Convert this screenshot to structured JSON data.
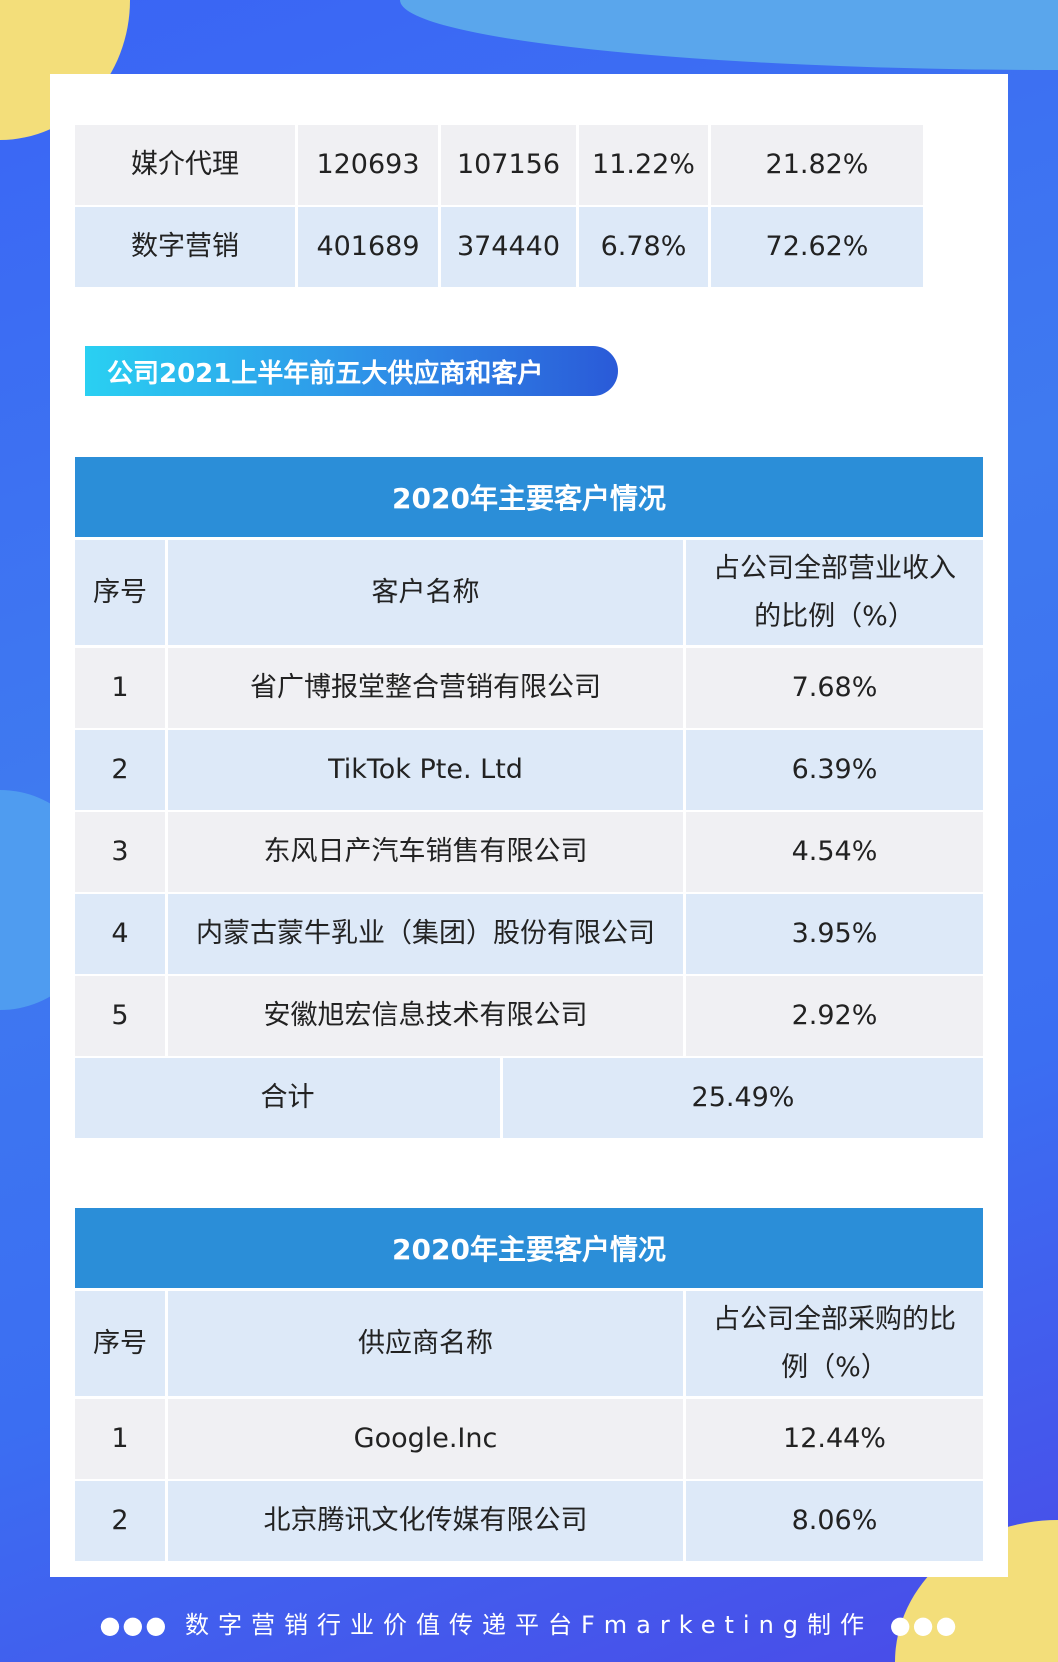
{
  "table_top": {
    "rows": [
      [
        "媒介代理",
        "120693",
        "107156",
        "11.22%",
        "21.82%"
      ],
      [
        "数字营销",
        "401689",
        "374440",
        "6.78%",
        "72.62%"
      ]
    ]
  },
  "section_title": "公司2021上半年前五大供应商和客户",
  "customers": {
    "title": "2020年主要客户情况",
    "headers": [
      "序号",
      "客户名称",
      "占公司全部营业收入的比例（%）"
    ],
    "rows": [
      [
        "1",
        "省广博报堂整合营销有限公司",
        "7.68%"
      ],
      [
        "2",
        "TikTok Pte. Ltd",
        "6.39%"
      ],
      [
        "3",
        "东风日产汽车销售有限公司",
        "4.54%"
      ],
      [
        "4",
        "内蒙古蒙牛乳业（集团）股份有限公司",
        "3.95%"
      ],
      [
        "5",
        "安徽旭宏信息技术有限公司",
        "2.92%"
      ]
    ],
    "total_label": "合计",
    "total_value": "25.49%"
  },
  "suppliers": {
    "title": "2020年主要客户情况",
    "headers": [
      "序号",
      "供应商名称",
      "占公司全部采购的比例（%）"
    ],
    "rows": [
      [
        "1",
        "Google.Inc",
        "12.44%"
      ],
      [
        "2",
        "北京腾讯文化传媒有限公司",
        "8.06%"
      ]
    ]
  },
  "footer": {
    "text": "数字营销行业价值传递平台Fmarketing制作",
    "dots": "⠿"
  }
}
